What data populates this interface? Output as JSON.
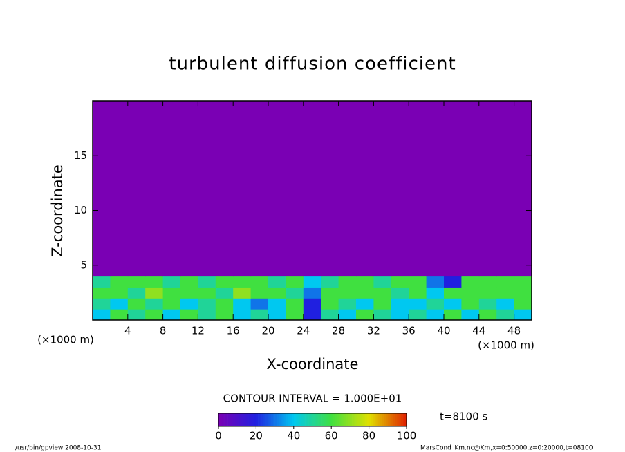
{
  "chart_data": {
    "type": "contour",
    "title": "turbulent diffusion coefficient",
    "x_label": "X-coordinate",
    "y_label": "Z-coordinate",
    "x_unit": "(×1000 m)",
    "y_unit": "(×1000 m)",
    "xlim": [
      0,
      50
    ],
    "ylim": [
      0,
      20
    ],
    "xticks": [
      4,
      8,
      12,
      16,
      20,
      24,
      28,
      32,
      36,
      40,
      44,
      48
    ],
    "yticks": [
      5,
      10,
      15
    ],
    "x_edges": [
      0,
      2,
      4,
      6,
      8,
      10,
      12,
      14,
      16,
      18,
      20,
      22,
      24,
      26,
      28,
      30,
      32,
      34,
      36,
      38,
      40,
      42,
      44,
      46,
      48,
      50
    ],
    "y_edges": [
      0,
      1,
      2,
      3,
      4,
      20
    ],
    "values": [
      [
        40,
        60,
        50,
        60,
        40,
        60,
        50,
        60,
        40,
        50,
        40,
        60,
        20,
        50,
        40,
        60,
        50,
        40,
        50,
        40,
        60,
        40,
        60,
        50,
        40
      ],
      [
        50,
        40,
        60,
        50,
        60,
        40,
        50,
        60,
        40,
        30,
        40,
        60,
        20,
        60,
        50,
        40,
        60,
        40,
        40,
        50,
        40,
        60,
        50,
        40,
        60
      ],
      [
        60,
        60,
        50,
        70,
        60,
        60,
        60,
        50,
        70,
        60,
        60,
        50,
        30,
        60,
        60,
        60,
        60,
        50,
        60,
        40,
        60,
        60,
        60,
        60,
        60
      ],
      [
        50,
        60,
        60,
        60,
        50,
        60,
        50,
        60,
        60,
        60,
        50,
        60,
        40,
        50,
        60,
        60,
        50,
        60,
        60,
        30,
        20,
        60,
        60,
        60,
        60
      ],
      [
        0,
        0,
        0,
        0,
        0,
        0,
        0,
        0,
        0,
        0,
        0,
        0,
        0,
        0,
        0,
        0,
        0,
        0,
        0,
        0,
        0,
        0,
        0,
        0,
        0
      ]
    ],
    "colormap": [
      "#7a00b4",
      "#2020e0",
      "#00c8f0",
      "#40e040",
      "#e0e000",
      "#e02000"
    ],
    "clim": [
      0,
      100
    ],
    "colorbar_ticks": [
      0,
      20,
      40,
      60,
      80,
      100
    ],
    "contour_interval_text": "CONTOUR INTERVAL = 1.000E+01",
    "time_text": "t=8100 s",
    "footer_left": "/usr/bin/gpview   2008-10-31",
    "footer_right": "MarsCond_Km.nc@Km,x=0:50000,z=0:20000,t=08100"
  }
}
